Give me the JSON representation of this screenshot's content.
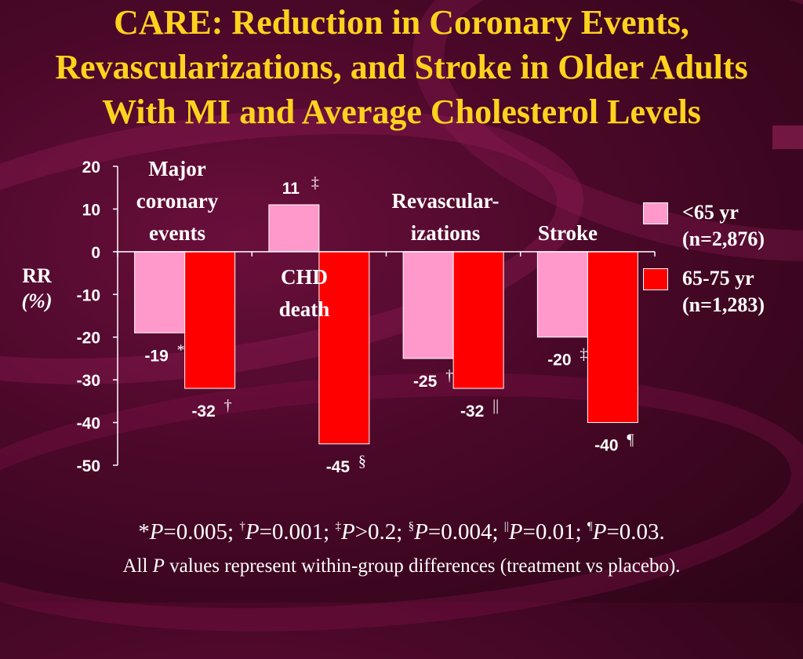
{
  "title_lines": [
    "CARE: Reduction in Coronary Events,",
    "Revascularizations, and Stroke in Older Adults",
    "With MI and Average Cholesterol Levels"
  ],
  "colors": {
    "under65": "#ff99cc",
    "age65_75": "#ff0000",
    "title": "#ffd21e",
    "text": "#ffffff"
  },
  "chart_data": {
    "type": "bar",
    "title": "",
    "ylabel_lines": [
      "RR",
      "(%)"
    ],
    "ylim": [
      -50,
      20
    ],
    "yticks": [
      20,
      10,
      0,
      -10,
      -20,
      -30,
      -40,
      -50
    ],
    "grid": false,
    "legend_position": "right",
    "categories": [
      "Major coronary events",
      "CHD death",
      "Revascular- izations",
      "Stroke"
    ],
    "category_label_lines": [
      [
        "Major",
        "coronary",
        "events"
      ],
      [
        "CHD",
        "death"
      ],
      [
        "Revascular-",
        "izations"
      ],
      [
        "Stroke"
      ]
    ],
    "series": [
      {
        "name": "<65 yr (n=2,876)",
        "legend_lines": [
          "<65 yr",
          "(n=2,876)"
        ],
        "values": [
          -19,
          11,
          -25,
          -20
        ],
        "labels": [
          "-19",
          "11",
          "-25",
          "-20"
        ],
        "symbols": [
          "*",
          "‡",
          "†",
          "‡"
        ]
      },
      {
        "name": "65-75 yr (n=1,283)",
        "legend_lines": [
          "65-75 yr",
          "(n=1,283)"
        ],
        "values": [
          -32,
          -45,
          -32,
          -40
        ],
        "labels": [
          "-32",
          "-45",
          "-32",
          "-40"
        ],
        "symbols": [
          "†",
          "§",
          "||",
          "¶"
        ]
      }
    ]
  },
  "footnotes": {
    "line1": [
      {
        "sym": "*",
        "text": "=0.005; "
      },
      {
        "sym": "†",
        "text": "=0.001; "
      },
      {
        "sym": "‡",
        "text": ">0.2; "
      },
      {
        "sym": "§",
        "text": "=0.004; "
      },
      {
        "sym": "||",
        "text": "=0.01; "
      },
      {
        "sym": "¶",
        "text": "=0.03."
      }
    ],
    "p_letter": "P",
    "line2_before": "All ",
    "line2_after": " values represent within-group differences (treatment vs placebo)."
  }
}
